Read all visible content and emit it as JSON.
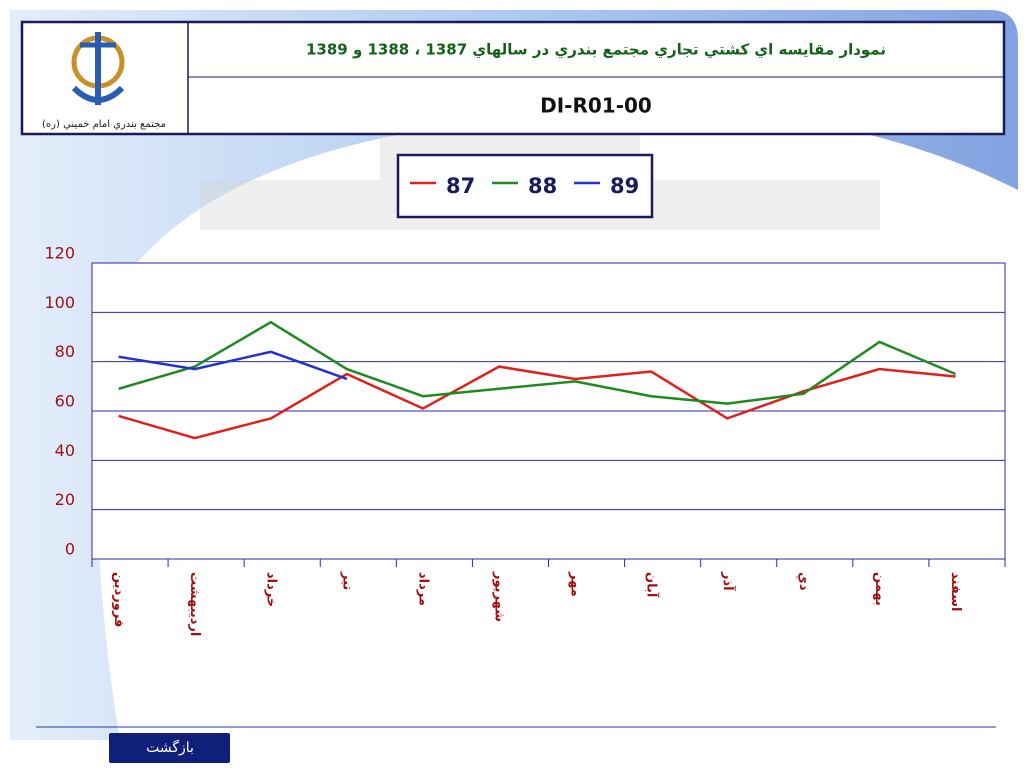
{
  "header": {
    "title": "نمودار مقايسه اي كشتي تجاري مجتمع بندري در سالهاي 1387 ، 1388 و 1389",
    "code": "DI-R01-00",
    "logo_caption": "مجتمع بندري امام خميني (ره)"
  },
  "footer": {
    "button": "بازگشت"
  },
  "chart_data": {
    "type": "line",
    "categories": [
      "فروردين",
      "ارديبهشت",
      "خرداد",
      "تير",
      "مرداد",
      "شهريور",
      "مهر",
      "آبان",
      "آذر",
      "دي",
      "بهمن",
      "اسفند"
    ],
    "series": [
      {
        "name": "87",
        "color": "#e0201c",
        "values": [
          58,
          49,
          57,
          75,
          61,
          78,
          73,
          76,
          57,
          68,
          77,
          74
        ]
      },
      {
        "name": "88",
        "color": "#1f8a1f",
        "values": [
          69,
          78,
          96,
          77,
          66,
          69,
          72,
          66,
          63,
          67,
          88,
          75
        ]
      },
      {
        "name": "89",
        "color": "#2233cc",
        "values": [
          82,
          77,
          84,
          73,
          null,
          null,
          null,
          null,
          null,
          null,
          null,
          null
        ]
      }
    ],
    "ylim": [
      0,
      120
    ],
    "yticks": [
      0,
      20,
      40,
      60,
      80,
      100,
      120
    ],
    "grid": true
  }
}
